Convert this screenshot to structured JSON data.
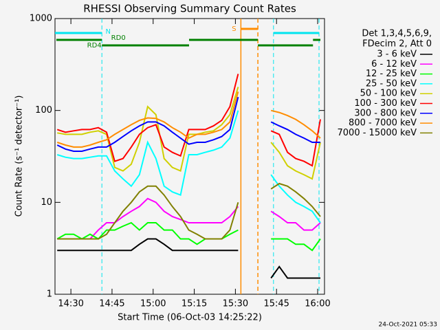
{
  "chart_data": {
    "type": "line",
    "title": "RHESSI Observing Summary Count Rates",
    "xlabel": "Start Time (06-Oct-03 14:25:22)",
    "ylabel": "Count Rate (s⁻¹ detector⁻¹)",
    "legend_header": [
      "Det 1,3,4,5,6,9,",
      "FDecim 2, Att 0"
    ],
    "stamp": "24-Oct-2021 05:33",
    "log_y": true,
    "legend": "outside-right",
    "xlim": [
      24.2,
      122.5
    ],
    "xticks": [
      {
        "value": 30,
        "label": "14:30"
      },
      {
        "value": 45,
        "label": "14:45"
      },
      {
        "value": 60,
        "label": "15:00"
      },
      {
        "value": 75,
        "label": "15:15"
      },
      {
        "value": 90,
        "label": "15:30"
      },
      {
        "value": 105,
        "label": "15:45"
      },
      {
        "value": 120,
        "label": "16:00"
      }
    ],
    "ylim": [
      1,
      1000
    ],
    "yticks": [
      1,
      10,
      100,
      1000
    ],
    "x": [
      25,
      28,
      31,
      34,
      37,
      40,
      43,
      46,
      49,
      52,
      55,
      58,
      61,
      64,
      67,
      70,
      73,
      76,
      79,
      82,
      85,
      88,
      91,
      94,
      97,
      100,
      103,
      106,
      109,
      112,
      115,
      118,
      121
    ],
    "series": [
      {
        "name": "3 - 6 keV",
        "color": "#000000",
        "values": [
          3,
          3,
          3,
          3,
          3,
          3,
          3,
          3,
          3,
          3,
          3.5,
          4,
          4,
          3.5,
          3,
          3,
          3,
          3,
          3,
          3,
          3,
          3,
          3,
          null,
          null,
          null,
          1.5,
          2,
          1.5,
          1.5,
          1.5,
          1.5,
          1.5
        ]
      },
      {
        "name": "6 - 12 keV",
        "color": "#ff00ff",
        "values": [
          4,
          4,
          4,
          4,
          4,
          5,
          6,
          6,
          7,
          8,
          9,
          11,
          10,
          8,
          7,
          6.5,
          6,
          6,
          6,
          6,
          6,
          7,
          9,
          null,
          null,
          null,
          8,
          7,
          6,
          6,
          5,
          5,
          6
        ]
      },
      {
        "name": "12 - 25 keV",
        "color": "#00ff00",
        "values": [
          4,
          4.5,
          4.5,
          4,
          4.5,
          4,
          5,
          5,
          5.5,
          6,
          5,
          6,
          6,
          5,
          5,
          4,
          4,
          3.5,
          4,
          4,
          4,
          4.5,
          5,
          null,
          null,
          null,
          4,
          4,
          4,
          3.5,
          3.5,
          3,
          4
        ]
      },
      {
        "name": "25 - 50 keV",
        "color": "#00ffff",
        "values": [
          33,
          31,
          30,
          30,
          31,
          32,
          32,
          22,
          18,
          15,
          20,
          45,
          30,
          15,
          13,
          12,
          33,
          33,
          35,
          37,
          40,
          50,
          100,
          null,
          null,
          null,
          20,
          15,
          12,
          10,
          9,
          8,
          6
        ]
      },
      {
        "name": "50 - 100 keV",
        "color": "#d0d000",
        "values": [
          57,
          55,
          55,
          55,
          58,
          60,
          55,
          24,
          22,
          26,
          45,
          110,
          90,
          30,
          24,
          22,
          55,
          55,
          58,
          60,
          70,
          90,
          180,
          null,
          null,
          null,
          45,
          35,
          25,
          22,
          20,
          18,
          45
        ]
      },
      {
        "name": "100 - 300 keV",
        "color": "#ff0000",
        "values": [
          62,
          58,
          60,
          62,
          62,
          65,
          58,
          28,
          30,
          40,
          55,
          65,
          70,
          40,
          35,
          32,
          62,
          62,
          62,
          68,
          78,
          110,
          250,
          null,
          null,
          null,
          60,
          55,
          35,
          30,
          28,
          25,
          80
        ]
      },
      {
        "name": "300 - 800 keV",
        "color": "#0000ff",
        "values": [
          42,
          38,
          36,
          36,
          38,
          40,
          40,
          45,
          52,
          60,
          68,
          75,
          75,
          68,
          58,
          50,
          43,
          45,
          45,
          48,
          52,
          62,
          140,
          null,
          null,
          null,
          75,
          68,
          62,
          55,
          50,
          45,
          45
        ]
      },
      {
        "name": "800 - 7000 keV",
        "color": "#ff8c00",
        "values": [
          45,
          42,
          40,
          40,
          42,
          45,
          48,
          55,
          62,
          70,
          78,
          83,
          82,
          75,
          65,
          58,
          50,
          55,
          55,
          58,
          62,
          75,
          160,
          null,
          null,
          null,
          100,
          95,
          88,
          80,
          70,
          60,
          50
        ]
      },
      {
        "name": "7000 - 15000 keV",
        "color": "#808000",
        "values": [
          4,
          4,
          4,
          4,
          4,
          4,
          4.5,
          6,
          8,
          10,
          13,
          15,
          15,
          12,
          9,
          7,
          5,
          4.5,
          4,
          4,
          4,
          5,
          10,
          null,
          null,
          null,
          14,
          16,
          15,
          13,
          11,
          9,
          7
        ]
      }
    ],
    "flags": [
      {
        "label": "S",
        "color": "#ff8c00",
        "intervals": [
          [
            92,
            98.2
          ]
        ]
      },
      {
        "label": "N",
        "color": "#00e5ee",
        "intervals": [
          [
            24.2,
            41.3
          ],
          [
            103.9,
            120.5
          ]
        ]
      },
      {
        "label": "RD0",
        "color": "#008000",
        "intervals": [
          [
            24.7,
            41.3
          ],
          [
            73.1,
            98.2
          ],
          [
            118.3,
            121
          ]
        ]
      },
      {
        "label": "RD4",
        "color": "#008000",
        "intervals": [
          [
            41.3,
            73.1
          ],
          [
            98.2,
            118.3
          ]
        ]
      }
    ]
  }
}
